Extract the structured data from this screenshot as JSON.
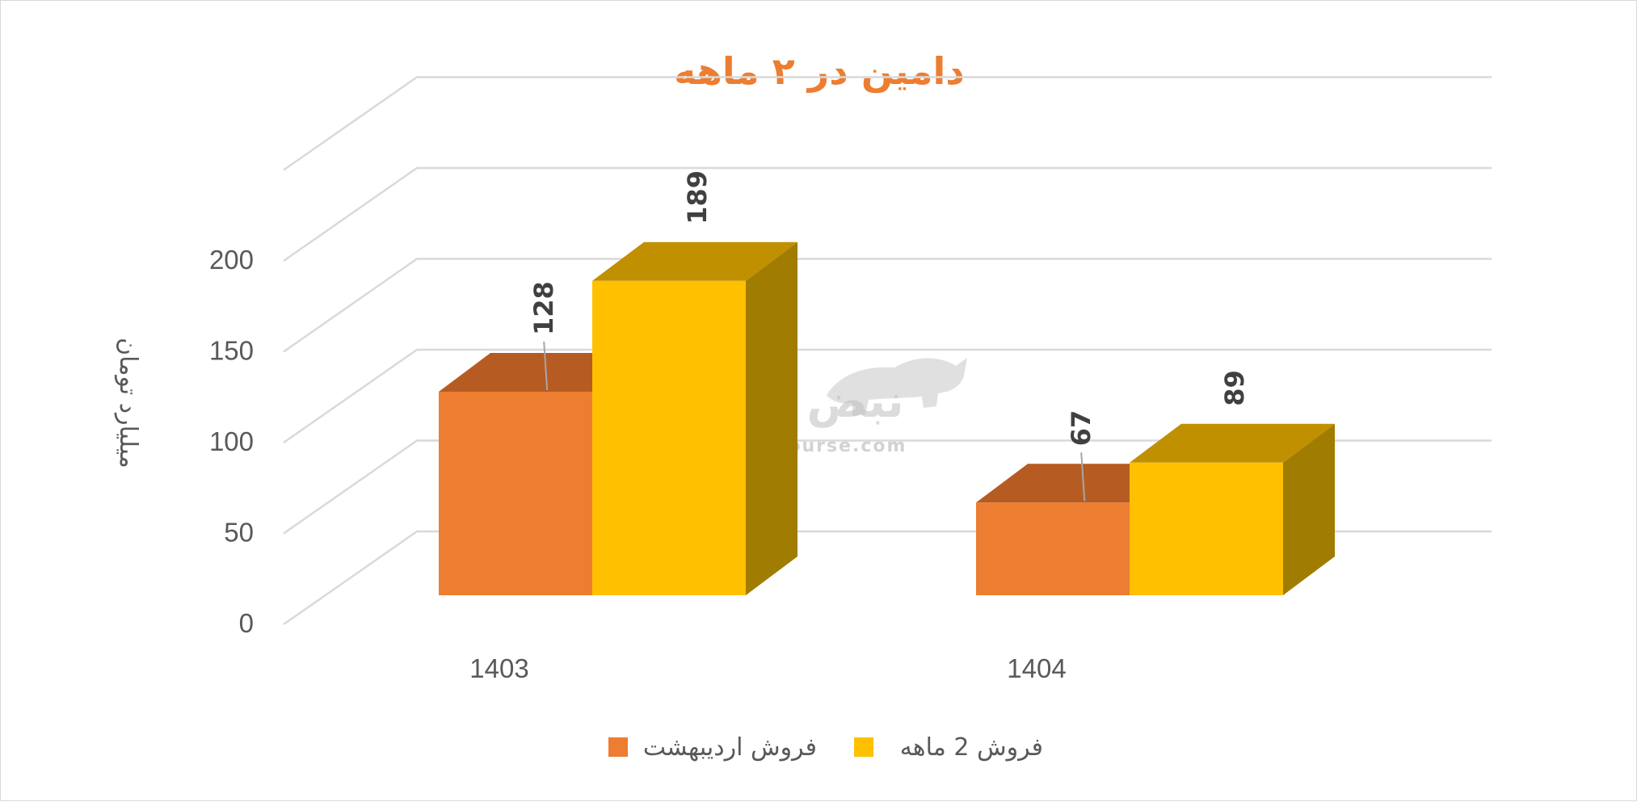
{
  "chart_data": {
    "type": "bar",
    "title": "دامین در ۲ ماهه",
    "ylabel": "میلیارد تومان",
    "xlabel": "",
    "categories": [
      "1403",
      "1404"
    ],
    "series": [
      {
        "name": "فروش اردیبهشت",
        "values": [
          128,
          67
        ],
        "labels": [
          "128",
          "67"
        ]
      },
      {
        "name": "فروش 2  ماهه",
        "values": [
          189,
          89
        ],
        "labels": [
          "189",
          "89"
        ]
      }
    ],
    "ylim": [
      0,
      250
    ],
    "yticks": [
      "0",
      "50",
      "100",
      "150",
      "200"
    ],
    "grid": true,
    "legend_position": "bottom",
    "style": "3d-clustered-column"
  },
  "watermark": {
    "brand": "نبض بورس",
    "url": "nabzebourse.com",
    "icon": "bull-icon"
  },
  "colors": {
    "title": "#ed7d31",
    "series_1_front": "#ed7d31",
    "series_1_top": "#b65c22",
    "series_1_side": "#9e4f1d",
    "series_2_front": "#ffc000",
    "series_2_top": "#c09000",
    "series_2_side": "#a07c00",
    "gridline": "#d9d9d9",
    "text": "#595959"
  }
}
